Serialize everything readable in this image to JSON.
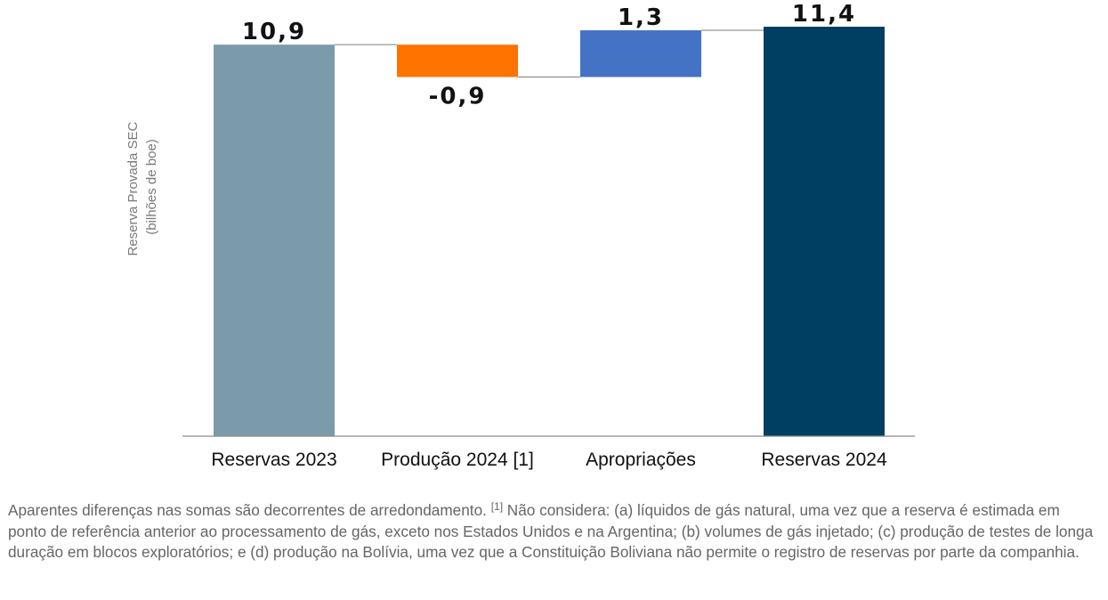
{
  "chart_data": {
    "type": "waterfall",
    "ylabel_lines": [
      "Reserva Provada SEC",
      "(bilhões de boe)"
    ],
    "categories": [
      "Reservas 2023",
      "Produção 2024 [1]",
      "Apropriações",
      "Reservas 2024"
    ],
    "values": [
      10.9,
      -0.9,
      1.3,
      11.4
    ],
    "value_labels": [
      "10,9",
      "-0,9",
      "1,3",
      "11,4"
    ],
    "kinds": [
      "total",
      "delta",
      "delta",
      "total"
    ],
    "colors": [
      "#7b9aaa",
      "#ff7300",
      "#4472c4",
      "#003f62"
    ],
    "ylim": [
      0,
      11.4
    ],
    "grid": false,
    "legend": "none"
  },
  "footnote": {
    "text_before": "Aparentes diferenças nas somas são decorrentes de arredondamento. ",
    "marker": "[1]",
    "text_after": " Não considera: (a) líquidos de gás natural, uma vez que a reserva é estimada em ponto de referência anterior ao processamento de gás, exceto nos Estados Unidos e na Argentina; (b) volumes de gás injetado; (c) produção de testes de longa duração em blocos exploratórios; e (d) produção na Bolívia, uma vez que a Constituição Boliviana não permite o registro de reservas por parte da companhia."
  }
}
